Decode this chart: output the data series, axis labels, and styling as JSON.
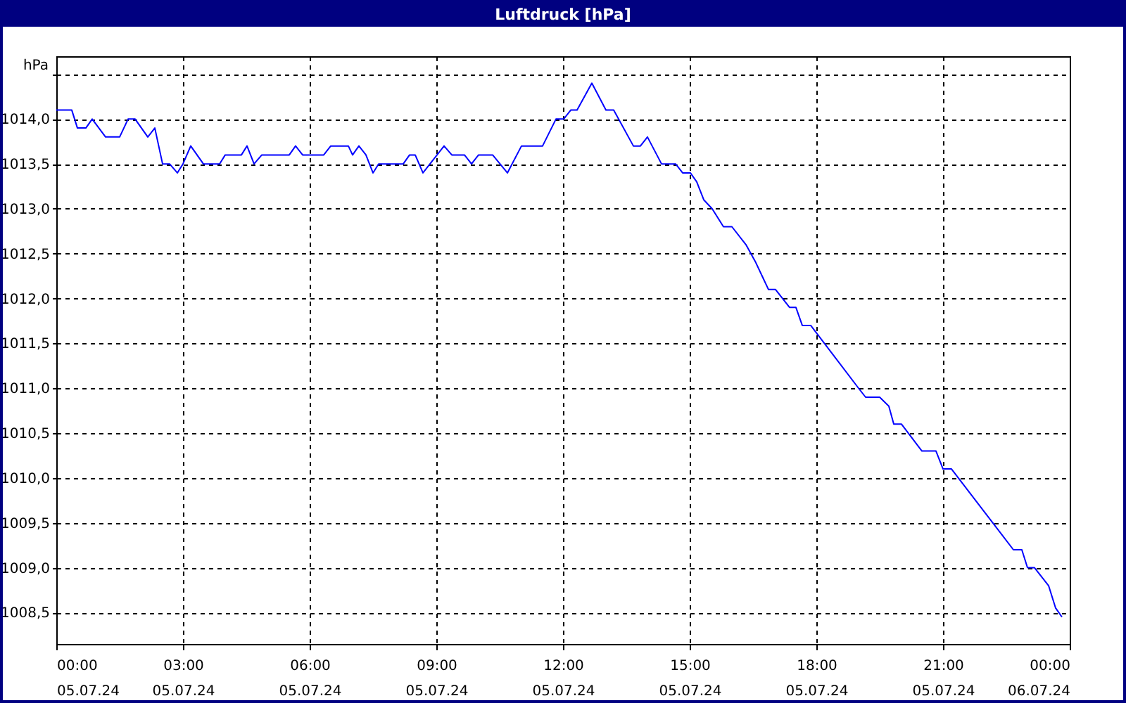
{
  "chart_data": {
    "type": "line",
    "title": "Luftdruck [hPa]",
    "ylabel": "hPa",
    "x": [
      "--07-05T00:00",
      "--07-05T00:22",
      "--07-05T00:30",
      "--07-05T00:42",
      "--07-05T00:51",
      "--07-05T01:10",
      "--07-05T01:30",
      "--07-05T01:42",
      "--07-05T01:52",
      "--07-05T02:10",
      "--07-05T02:20",
      "--07-05T02:31",
      "--07-05T02:41",
      "--07-05T02:52",
      "--07-05T03:00",
      "--07-05T03:11",
      "--07-05T03:29",
      "--07-05T03:52",
      "--07-05T04:00",
      "--07-05T04:23",
      "--07-05T04:31",
      "--07-05T04:41",
      "--07-05T04:52",
      "--07-05T05:31",
      "--07-05T05:40",
      "--07-05T05:50",
      "--07-05T06:20",
      "--07-05T06:30",
      "--07-05T06:55",
      "--07-05T07:01",
      "--07-05T07:10",
      "--07-05T07:20",
      "--07-05T07:30",
      "--07-05T07:38",
      "--07-05T08:13",
      "--07-05T08:22",
      "--07-05T08:30",
      "--07-05T08:41",
      "--07-05T09:11",
      "--07-05T09:22",
      "--07-05T09:40",
      "--07-05T09:50",
      "--07-05T10:00",
      "--07-05T10:20",
      "--07-05T10:41",
      "--07-05T11:01",
      "--07-05T11:31",
      "--07-05T11:50",
      "--07-05T12:01",
      "--07-05T12:11",
      "--07-05T12:20",
      "--07-05T12:41",
      "--07-05T13:01",
      "--07-05T13:12",
      "--07-05T13:40",
      "--07-05T13:50",
      "--07-05T14:00",
      "--07-05T14:20",
      "--07-05T14:40",
      "--07-05T14:50",
      "--07-05T15:01",
      "--07-05T15:10",
      "--07-05T15:20",
      "--07-05T15:32",
      "--07-05T15:48",
      "--07-05T16:00",
      "--07-05T16:20",
      "--07-05T16:34",
      "--07-05T16:43",
      "--07-05T16:52",
      "--07-05T17:02",
      "--07-05T17:22",
      "--07-05T17:31",
      "--07-05T17:40",
      "--07-05T17:52",
      "--07-05T19:00",
      "--07-05T19:10",
      "--07-05T19:30",
      "--07-05T19:43",
      "--07-05T19:50",
      "--07-05T20:01",
      "--07-05T20:30",
      "--07-05T20:50",
      "--07-05T21:00",
      "--07-05T21:12",
      "--07-05T22:40",
      "--07-05T22:52",
      "--07-05T23:00",
      "--07-05T23:10",
      "--07-05T23:30",
      "--07-05T23:40",
      "--07-05T23:49"
    ],
    "series": [
      {
        "color": "#0000ff",
        "values": [
          1014.1,
          1014.1,
          1013.9,
          1013.9,
          1014.0,
          1013.8,
          1013.8,
          1014.0,
          1014.0,
          1013.8,
          1013.9,
          1013.5,
          1013.5,
          1013.4,
          1013.5,
          1013.7,
          1013.5,
          1013.5,
          1013.6,
          1013.6,
          1013.7,
          1013.5,
          1013.6,
          1013.6,
          1013.7,
          1013.6,
          1013.6,
          1013.7,
          1013.7,
          1013.6,
          1013.7,
          1013.6,
          1013.4,
          1013.5,
          1013.5,
          1013.6,
          1013.6,
          1013.4,
          1013.7,
          1013.6,
          1013.6,
          1013.5,
          1013.6,
          1013.6,
          1013.4,
          1013.7,
          1013.7,
          1014.0,
          1014.0,
          1014.1,
          1014.1,
          1014.4,
          1014.1,
          1014.1,
          1013.7,
          1013.7,
          1013.8,
          1013.5,
          1013.5,
          1013.4,
          1013.4,
          1013.3,
          1013.1,
          1013.0,
          1012.8,
          1012.8,
          1012.6,
          1012.4,
          1012.25,
          1012.1,
          1012.1,
          1011.9,
          1011.9,
          1011.7,
          1011.7,
          1011.0,
          1010.9,
          1010.9,
          1010.8,
          1010.6,
          1010.6,
          1010.3,
          1010.3,
          1010.1,
          1010.1,
          1009.2,
          1009.2,
          1009.0,
          1009.0,
          1008.8,
          1008.55,
          1008.45
        ]
      }
    ],
    "xlim": [
      "--07-05T00:00",
      "--07-06T00:00"
    ],
    "ylim": [
      1008.15,
      1014.7
    ],
    "xticks": [
      {
        "value": "--07-05T00:00",
        "label": "00:00\n05.07.24"
      },
      {
        "value": "--07-05T03:00",
        "label": "03:00\n05.07.24"
      },
      {
        "value": "--07-05T06:00",
        "label": "06:00\n05.07.24"
      },
      {
        "value": "--07-05T09:00",
        "label": "09:00\n05.07.24"
      },
      {
        "value": "--07-05T12:00",
        "label": "12:00\n05.07.24"
      },
      {
        "value": "--07-05T15:00",
        "label": "15:00\n05.07.24"
      },
      {
        "value": "--07-05T18:00",
        "label": "18:00\n05.07.24"
      },
      {
        "value": "--07-05T21:00",
        "label": "21:00\n05.07.24"
      },
      {
        "value": "--07-06T00:00",
        "label": "00:00\n06.07.24"
      }
    ],
    "yticks": [
      {
        "value": 1008.5,
        "label": "1008,5"
      },
      {
        "value": 1009,
        "label": "1009,0"
      },
      {
        "value": 1009.5,
        "label": "1009,5"
      },
      {
        "value": 1010,
        "label": "1010,0"
      },
      {
        "value": 1010.5,
        "label": "1010,5"
      },
      {
        "value": 1011,
        "label": "1011,0"
      },
      {
        "value": 1011.5,
        "label": "1011,5"
      },
      {
        "value": 1012,
        "label": "1012,0"
      },
      {
        "value": 1012.5,
        "label": "1012,5"
      },
      {
        "value": 1013,
        "label": "1013,0"
      },
      {
        "value": 1013.5,
        "label": "1013,5"
      },
      {
        "value": 1014,
        "label": "1014,0"
      },
      {
        "value": 1014.5,
        "label": null
      }
    ],
    "grid": true,
    "marker": "none",
    "line_style": "solid"
  }
}
